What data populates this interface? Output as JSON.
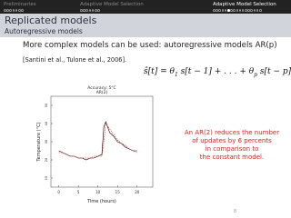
{
  "nav": [
    "Preliminaries",
    "Adaptive Model Selection",
    "Adaptive Model Selection"
  ],
  "header": {
    "title": "Replicated models",
    "subtitle": "Autoregressive models"
  },
  "body": {
    "intro": "More complex models can be used: autoregressive models AR(p)",
    "citation": "[Santini et al., Tulone et al., 2006].",
    "formula": [
      "ŝ[t] = θ",
      "1",
      " s[t − 1] + . . . + θ",
      "p",
      " s[t − p]"
    ],
    "note": [
      "An AR(2) reduces the number",
      "of updates by 6 percents",
      "in comparison to",
      "the constant model."
    ]
  },
  "footer": {
    "page": "8"
  },
  "chart_data": {
    "type": "line",
    "title": "Accuracy: 5°C",
    "subtitle": "AR(2)",
    "x_label": "Time (hours)",
    "y_label": "Temperature (°C)",
    "xlim": [
      -2,
      24
    ],
    "xticks": [
      0,
      5,
      10,
      15,
      20
    ],
    "ylim": [
      5,
      55
    ],
    "yticks": [
      10,
      20,
      30,
      40,
      50
    ],
    "x": [
      0,
      1,
      2,
      3,
      4,
      5,
      6,
      7,
      8,
      9,
      10,
      11,
      11.5,
      12,
      13,
      14,
      15,
      16,
      17,
      18,
      19,
      20
    ],
    "series": [
      {
        "color": "#000000",
        "values": [
          25,
          24,
          23,
          22,
          22,
          21,
          21,
          20,
          21,
          21,
          22,
          23,
          38,
          41,
          35,
          33,
          30,
          29,
          27,
          26,
          25,
          25
        ]
      },
      {
        "color": "#e0201a",
        "values": [
          24,
          24,
          23,
          22,
          22,
          21,
          21,
          21,
          21,
          22,
          22,
          22,
          30,
          40,
          37,
          34,
          31,
          29,
          28,
          26,
          25,
          24
        ]
      }
    ]
  }
}
